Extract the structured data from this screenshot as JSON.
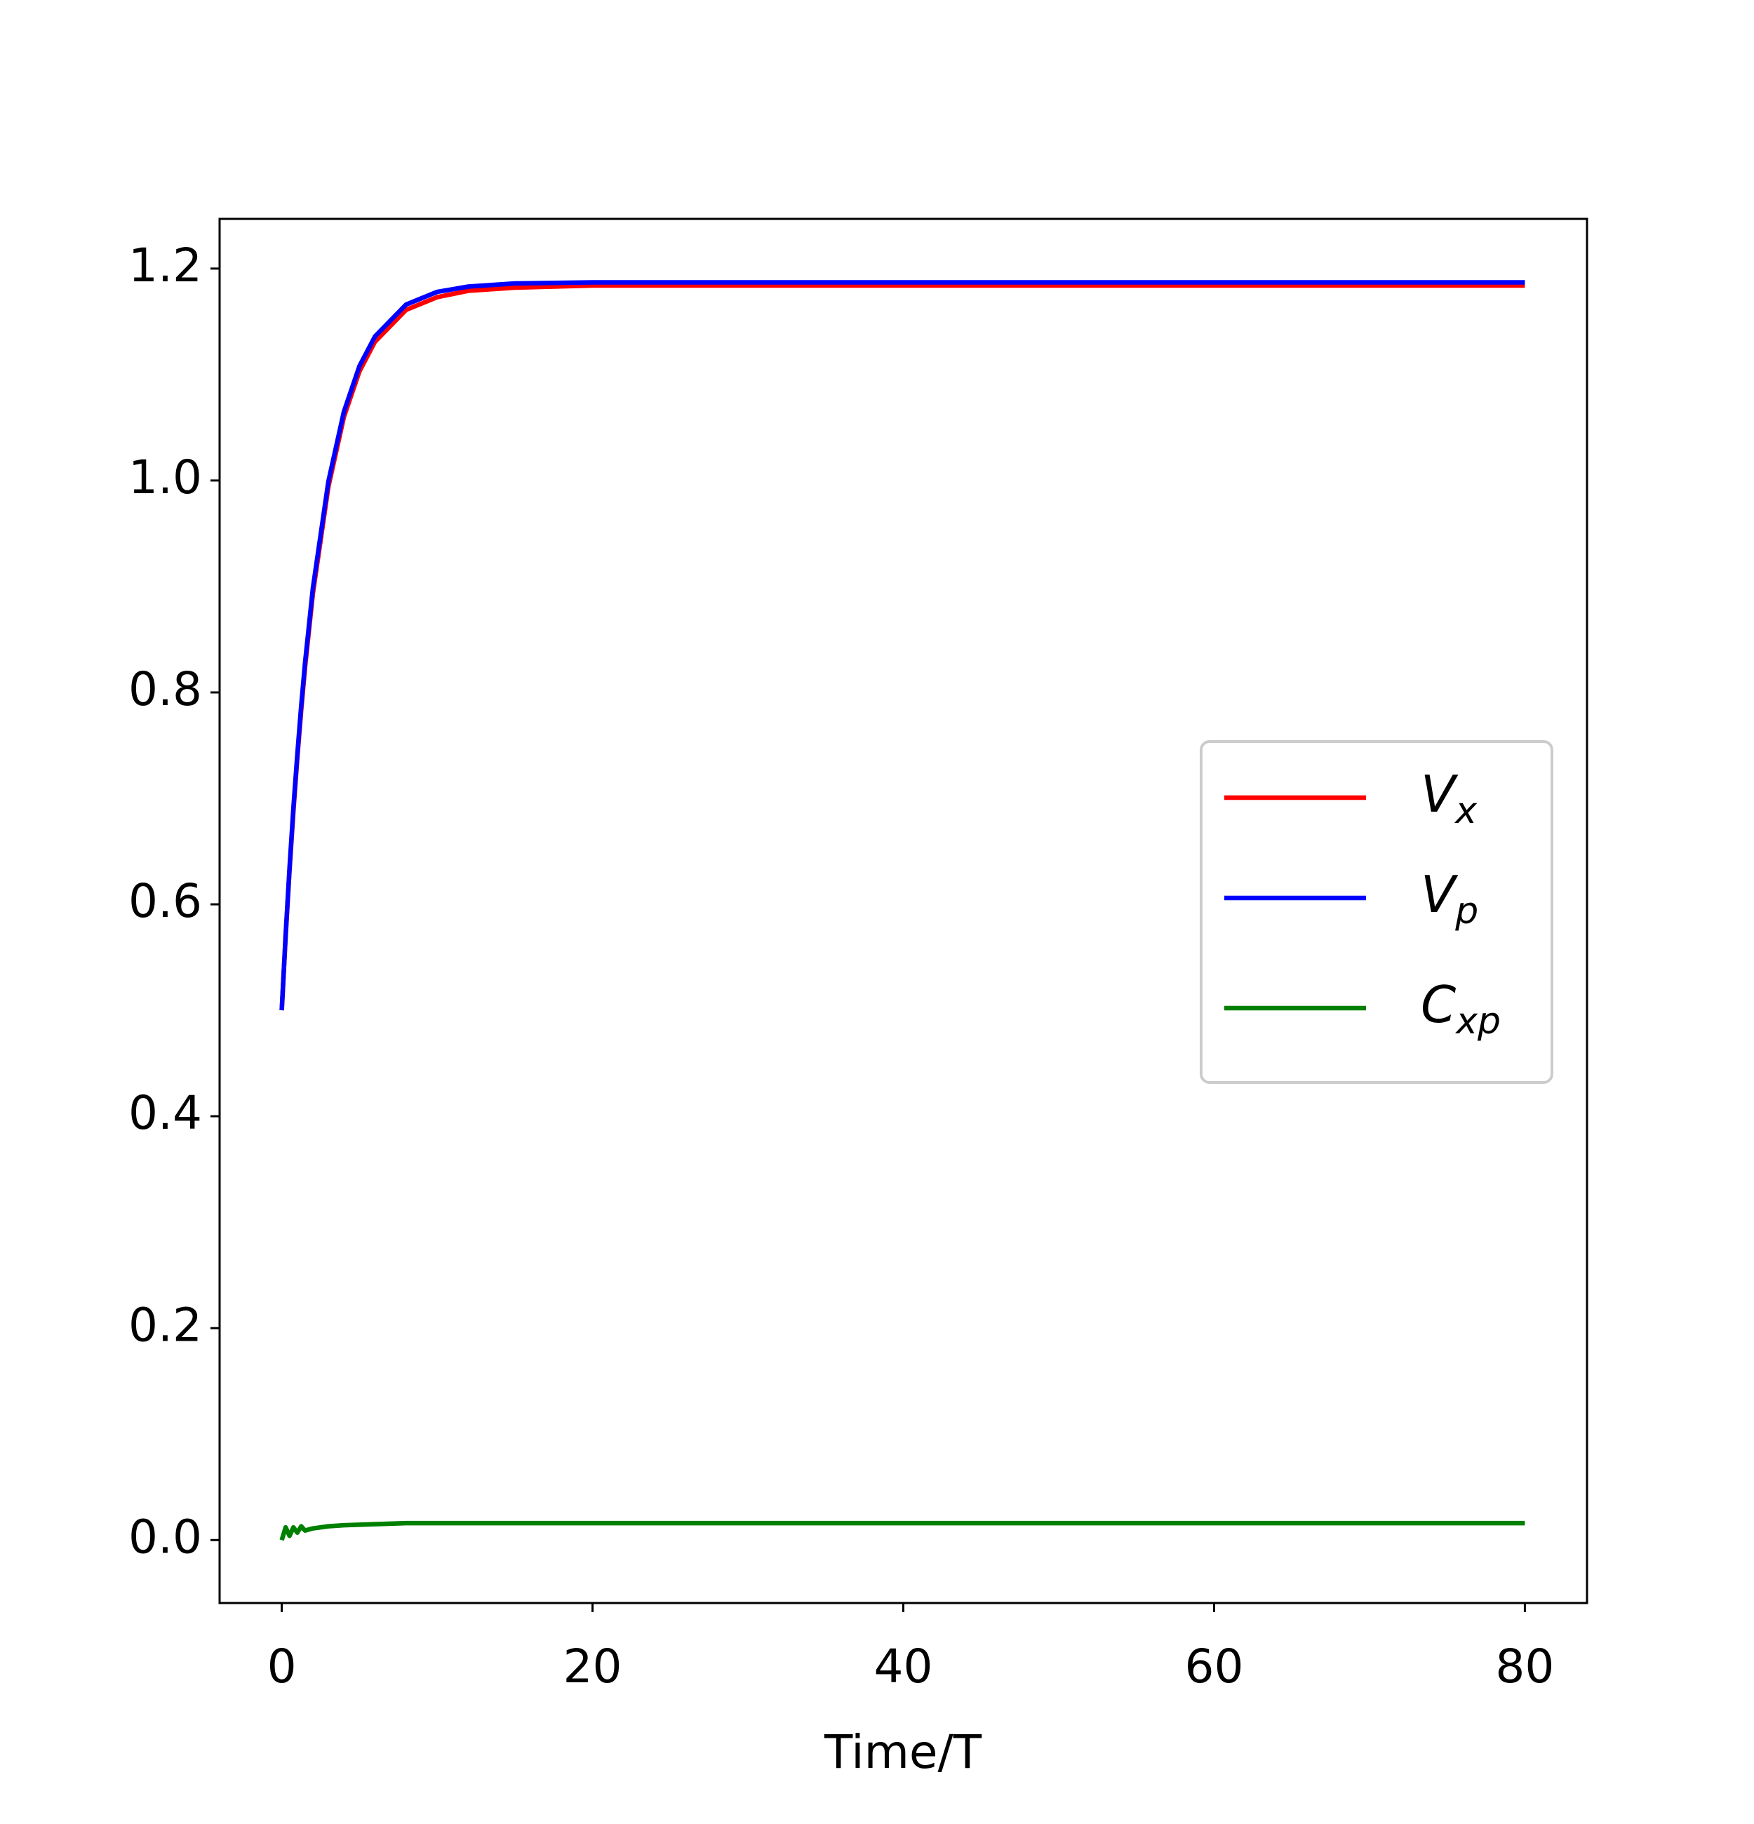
{
  "chart_data": {
    "type": "line",
    "xlabel": "Time/T",
    "x": [
      0,
      0.25,
      0.5,
      0.75,
      1,
      1.25,
      1.5,
      2,
      3,
      4,
      5,
      6,
      8,
      10,
      12,
      15,
      20,
      30,
      40,
      50,
      60,
      70,
      80
    ],
    "series": [
      {
        "name": "Vx",
        "color": "#ff0000",
        "values": [
          0.5,
          0.57,
          0.632,
          0.688,
          0.738,
          0.783,
          0.824,
          0.893,
          0.994,
          1.06,
          1.103,
          1.131,
          1.161,
          1.173,
          1.179,
          1.182,
          1.184,
          1.184,
          1.184,
          1.184,
          1.184,
          1.184,
          1.184
        ]
      },
      {
        "name": "Vp",
        "color": "#0000ff",
        "values": [
          0.5,
          0.571,
          0.634,
          0.691,
          0.741,
          0.787,
          0.828,
          0.898,
          0.999,
          1.065,
          1.108,
          1.136,
          1.166,
          1.178,
          1.183,
          1.186,
          1.187,
          1.187,
          1.187,
          1.187,
          1.187,
          1.187,
          1.187
        ]
      },
      {
        "name": "Cxp",
        "color": "#008000",
        "values": [
          0,
          0.012,
          0.004,
          0.012,
          0.007,
          0.013,
          0.009,
          0.011,
          0.013,
          0.014,
          0.0145,
          0.015,
          0.016,
          0.016,
          0.016,
          0.016,
          0.016,
          0.016,
          0.016,
          0.016,
          0.016,
          0.016,
          0.016
        ]
      }
    ],
    "xlim": [
      -4,
      84
    ],
    "xticks": [
      0,
      20,
      40,
      60,
      80
    ],
    "ylim": [
      -0.0594,
      1.2469
    ],
    "yticks": [
      {
        "value": 0,
        "label": "0.0"
      },
      0.2,
      0.4,
      0.6,
      0.8,
      {
        "value": 1,
        "label": "1.0"
      },
      1.2
    ],
    "grid": false,
    "legend": "center right"
  }
}
